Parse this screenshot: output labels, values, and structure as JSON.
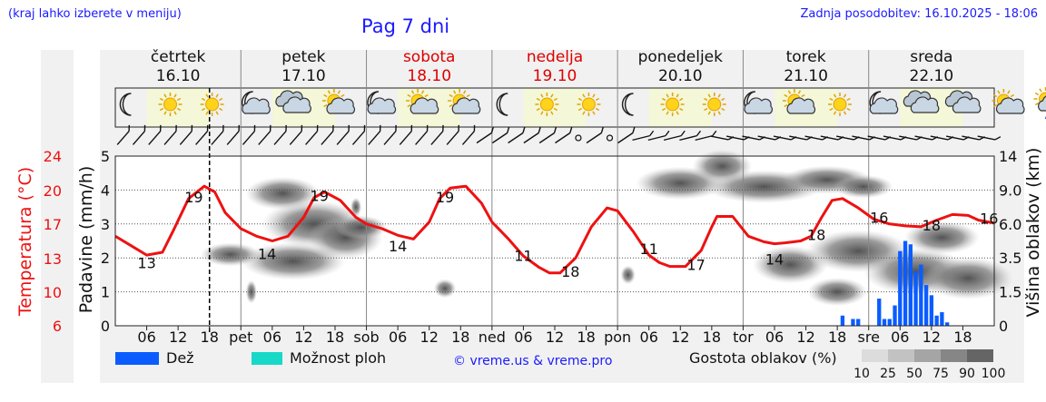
{
  "header": {
    "region_note": "(kraj lahko izberete v meniju)",
    "title": "Pag 7 dni",
    "updated": "Zadnja posodobitev: 16.10.2025 - 18:06"
  },
  "colors": {
    "temperature": "#ee1111",
    "rain": "#0a5cff",
    "showers": "#16d9c8",
    "weekend": "#dd0000",
    "daylight": "#f4f7d8",
    "link": "#1a1aff"
  },
  "icons": [
    [
      "moon-icon",
      "sun-icon",
      "sun-icon"
    ],
    [
      "moon-cloud-icon",
      "cloud-icon",
      "sun-cloud-icon"
    ],
    [
      "moon-cloud-icon",
      "sun-cloud-icon",
      "sun-cloud-icon"
    ],
    [
      "moon-icon",
      "sun-icon",
      "sun-icon"
    ],
    [
      "moon-icon",
      "sun-icon",
      "sun-icon"
    ],
    [
      "moon-cloud-icon",
      "sun-cloud-icon",
      "sun-icon"
    ],
    [
      "moon-cloud-icon",
      "cloud-icon",
      "cloud-icon"
    ],
    [
      "sun-cloud-icon",
      "sun-cloud-rain-icon",
      "cloud-rain-icon"
    ],
    [
      "moon-cloud-icon",
      "cloud-rain-icon",
      "sun-cloud-icon"
    ],
    [
      "cloud-icon"
    ]
  ],
  "chart_data": {
    "type": "line",
    "days": [
      {
        "name": "četrtek",
        "date": "16.10",
        "weekend": false
      },
      {
        "name": "petek",
        "date": "17.10",
        "weekend": false
      },
      {
        "name": "sobota",
        "date": "18.10",
        "weekend": true
      },
      {
        "name": "nedelja",
        "date": "19.10",
        "weekend": true
      },
      {
        "name": "ponedeljek",
        "date": "20.10",
        "weekend": false
      },
      {
        "name": "torek",
        "date": "21.10",
        "weekend": false
      },
      {
        "name": "sreda",
        "date": "22.10",
        "weekend": false
      }
    ],
    "x_ticks": [
      "06",
      "12",
      "18",
      "pet",
      "06",
      "12",
      "18",
      "sob",
      "06",
      "12",
      "18",
      "ned",
      "06",
      "12",
      "18",
      "pon",
      "06",
      "12",
      "18",
      "tor",
      "06",
      "12",
      "18",
      "sre",
      "06",
      "12",
      "18"
    ],
    "x_range_hours": [
      0,
      168
    ],
    "left_axis_temperature": {
      "label": "Temperatura (°C)",
      "ticks": [
        "24",
        "20",
        "17",
        "13",
        "10",
        "6"
      ]
    },
    "left_axis_precip": {
      "label": "Padavine (mm/h)",
      "ticks": [
        "5",
        "4",
        "3",
        "2",
        "1",
        "0"
      ],
      "ylim": [
        0,
        5
      ]
    },
    "right_axis_clouds": {
      "label": "Višina oblakov (km)",
      "ticks": [
        "14",
        "9.0",
        "6.0",
        "3.5",
        "1.5",
        "0"
      ]
    },
    "temperature_series": {
      "hours": [
        0,
        3,
        6,
        9,
        11,
        14,
        17,
        19,
        21,
        24,
        27,
        30,
        33,
        36,
        38,
        40,
        43,
        46,
        48,
        51,
        54,
        57,
        60,
        62,
        64,
        67,
        70,
        72,
        75,
        78,
        81,
        83,
        85,
        88,
        91,
        94,
        96,
        99,
        102,
        104,
        106,
        109,
        112,
        114,
        115,
        118,
        121,
        124,
        126,
        128,
        131,
        133,
        135,
        137,
        139,
        142,
        145,
        148,
        151,
        154,
        157,
        160,
        163,
        165,
        168
      ],
      "values": [
        15.5,
        14.5,
        13.5,
        13.8,
        16,
        19.5,
        20.8,
        20.2,
        18,
        16.3,
        15.5,
        15,
        15.5,
        17.5,
        19.6,
        20.2,
        19.3,
        17.5,
        16.8,
        16.3,
        15.6,
        15.2,
        17,
        19.5,
        20.6,
        20.8,
        19,
        17,
        15.3,
        13.4,
        12.2,
        11.6,
        11.6,
        13.2,
        16.5,
        18.5,
        18.2,
        16,
        13.5,
        12.7,
        12.3,
        12.3,
        14,
        16.5,
        17.6,
        17.6,
        15.5,
        14.9,
        14.7,
        14.8,
        15,
        15.5,
        17.5,
        19.3,
        19.5,
        18.5,
        17.3,
        16.8,
        16.6,
        16.5,
        17.2,
        17.8,
        17.7,
        17.2,
        16.9
      ],
      "labels": [
        {
          "h": 6,
          "text": "13"
        },
        {
          "h": 15,
          "text": "19"
        },
        {
          "h": 29,
          "text": "14"
        },
        {
          "h": 39,
          "text": "19"
        },
        {
          "h": 54,
          "text": "14"
        },
        {
          "h": 63,
          "text": "19"
        },
        {
          "h": 78,
          "text": "11"
        },
        {
          "h": 87,
          "text": "18"
        },
        {
          "h": 102,
          "text": "11"
        },
        {
          "h": 111,
          "text": "17"
        },
        {
          "h": 126,
          "text": "14"
        },
        {
          "h": 134,
          "text": "18"
        },
        {
          "h": 146,
          "text": "16"
        },
        {
          "h": 156,
          "text": "18"
        },
        {
          "h": 167,
          "text": "16"
        }
      ]
    },
    "precipitation_series": {
      "name": "Dež",
      "hours": [
        139,
        141,
        142,
        146,
        147,
        148,
        149,
        150,
        151,
        152,
        153,
        154,
        155,
        156,
        157,
        158,
        159
      ],
      "values": [
        0.3,
        0.2,
        0.2,
        0.8,
        0.2,
        0.2,
        0.6,
        2.2,
        2.5,
        2.4,
        1.6,
        1.8,
        1.2,
        0.9,
        0.3,
        0.4,
        0.1
      ]
    },
    "legend": {
      "rain": "Dež",
      "showers": "Možnost ploh",
      "credit": "© vreme.us & vreme.pro",
      "cloud_density_label": "Gostota oblakov (%)",
      "cloud_density_ticks": [
        "10",
        "25",
        "50",
        "75",
        "90",
        "100"
      ]
    }
  }
}
